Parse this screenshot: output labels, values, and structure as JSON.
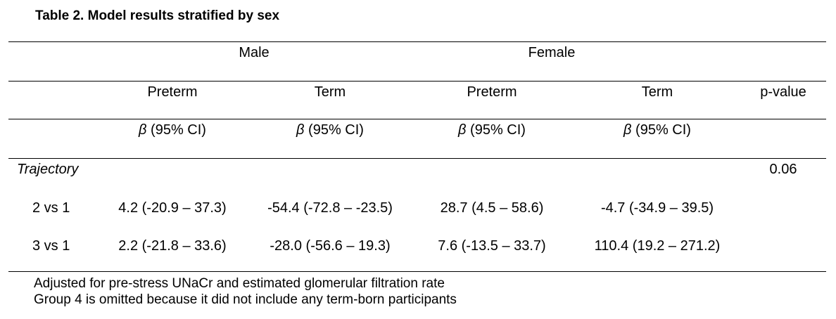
{
  "title": "Table 2. Model results stratified by sex",
  "groups": {
    "male": "Male",
    "female": "Female"
  },
  "subheaders": {
    "male_preterm": "Preterm",
    "male_term": "Term",
    "female_preterm": "Preterm",
    "female_term": "Term",
    "pvalue": "p-value"
  },
  "stat_label": {
    "beta": "β",
    "ci": " (95% CI)"
  },
  "section": {
    "label": "Trajectory",
    "pvalue": "0.06"
  },
  "rows": [
    {
      "label": "2 vs 1",
      "male_preterm": "4.2 (-20.9 – 37.3)",
      "male_term": "-54.4 (-72.8 – -23.5)",
      "female_preterm": "28.7 (4.5 – 58.6)",
      "female_term": "-4.7 (-34.9 – 39.5)"
    },
    {
      "label": "3 vs 1",
      "male_preterm": "2.2 (-21.8 – 33.6)",
      "male_term": "-28.0 (-56.6 – 19.3)",
      "female_preterm": "7.6 (-13.5 – 33.7)",
      "female_term": "110.4 (19.2 – 271.2)"
    }
  ],
  "notes": [
    "Adjusted for pre-stress UNaCr and estimated glomerular filtration rate",
    "Group 4 is omitted because it did not include any term-born participants"
  ]
}
